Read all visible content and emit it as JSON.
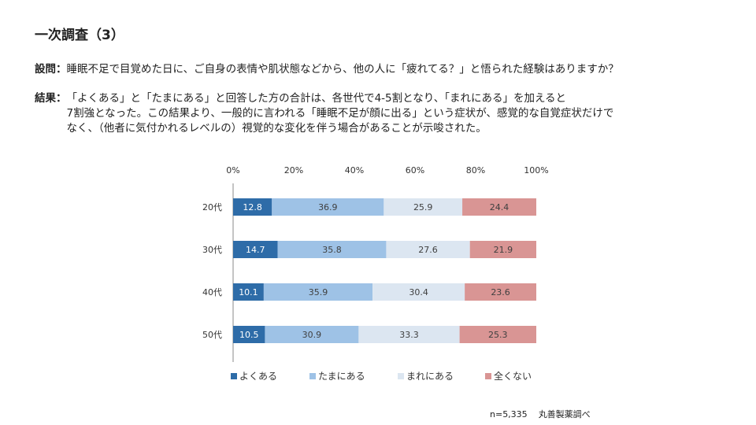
{
  "title": "一次調査（3）",
  "question": {
    "label": "設問：",
    "text": "睡眠不足で目覚めた日に、ご自身の表情や肌状態などから、他の人に「疲れてる？」と悟られた経験はありますか？"
  },
  "result": {
    "label": "結果：",
    "lines": [
      "「よくある」と「たまにある」と回答した方の合計は、各世代で4-5割となり、「まれにある」を加えると",
      "7割強となった。この結果より、一般的に言われる「睡眠不足が顔に出る」という症状が、感覚的な自覚症状だけで",
      "なく、（他者に気付かれるレベルの）視覚的な変化を伴う場合があることが示唆された。"
    ]
  },
  "footnote": {
    "n": "n=5,335",
    "source": "丸善製薬調べ"
  },
  "chart_data": {
    "type": "bar",
    "orientation": "horizontal",
    "stacked": "percent",
    "categories": [
      "20代",
      "30代",
      "40代",
      "50代"
    ],
    "xticks": [
      "0%",
      "20%",
      "40%",
      "60%",
      "80%",
      "100%"
    ],
    "xlim": [
      0,
      100
    ],
    "series": [
      {
        "name": "よくある",
        "color": "#2e6ca8",
        "values": [
          12.8,
          14.7,
          10.1,
          10.5
        ]
      },
      {
        "name": "たまにある",
        "color": "#9ec2e6",
        "values": [
          36.9,
          35.8,
          35.9,
          30.9
        ]
      },
      {
        "name": "まれにある",
        "color": "#dce6f1",
        "values": [
          25.9,
          27.6,
          30.4,
          33.3
        ]
      },
      {
        "name": "全くない",
        "color": "#d99594",
        "values": [
          24.4,
          21.9,
          23.6,
          25.3
        ]
      }
    ],
    "legend_position": "bottom"
  }
}
